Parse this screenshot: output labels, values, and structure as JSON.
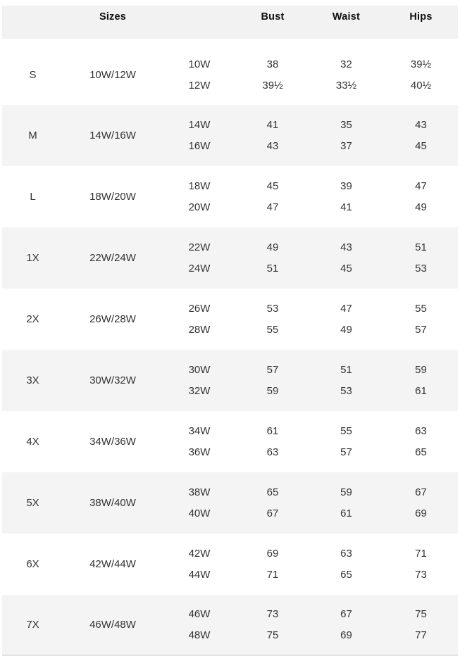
{
  "colors": {
    "header_band_bg": "#f2f2f2",
    "shaded_band_bg": "#f4f4f4",
    "header_text": "#111111",
    "body_text": "#333333",
    "bottom_border": "#e2e2e2"
  },
  "chart_data": {
    "type": "table",
    "headers": {
      "sizes": "Sizes",
      "bust": "Bust",
      "waist": "Waist",
      "hips": "Hips"
    },
    "groups": [
      {
        "label": "S",
        "range": "10W/12W",
        "subs": [
          {
            "size": "10W",
            "bust": "38",
            "waist": "32",
            "hips": "39½"
          },
          {
            "size": "12W",
            "bust": "39½",
            "waist": "33½",
            "hips": "40½"
          }
        ]
      },
      {
        "label": "M",
        "range": "14W/16W",
        "subs": [
          {
            "size": "14W",
            "bust": "41",
            "waist": "35",
            "hips": "43"
          },
          {
            "size": "16W",
            "bust": "43",
            "waist": "37",
            "hips": "45"
          }
        ]
      },
      {
        "label": "L",
        "range": "18W/20W",
        "subs": [
          {
            "size": "18W",
            "bust": "45",
            "waist": "39",
            "hips": "47"
          },
          {
            "size": "20W",
            "bust": "47",
            "waist": "41",
            "hips": "49"
          }
        ]
      },
      {
        "label": "1X",
        "range": "22W/24W",
        "subs": [
          {
            "size": "22W",
            "bust": "49",
            "waist": "43",
            "hips": "51"
          },
          {
            "size": "24W",
            "bust": "51",
            "waist": "45",
            "hips": "53"
          }
        ]
      },
      {
        "label": "2X",
        "range": "26W/28W",
        "subs": [
          {
            "size": "26W",
            "bust": "53",
            "waist": "47",
            "hips": "55"
          },
          {
            "size": "28W",
            "bust": "55",
            "waist": "49",
            "hips": "57"
          }
        ]
      },
      {
        "label": "3X",
        "range": "30W/32W",
        "subs": [
          {
            "size": "30W",
            "bust": "57",
            "waist": "51",
            "hips": "59"
          },
          {
            "size": "32W",
            "bust": "59",
            "waist": "53",
            "hips": "61"
          }
        ]
      },
      {
        "label": "4X",
        "range": "34W/36W",
        "subs": [
          {
            "size": "34W",
            "bust": "61",
            "waist": "55",
            "hips": "63"
          },
          {
            "size": "36W",
            "bust": "63",
            "waist": "57",
            "hips": "65"
          }
        ]
      },
      {
        "label": "5X",
        "range": "38W/40W",
        "subs": [
          {
            "size": "38W",
            "bust": "65",
            "waist": "59",
            "hips": "67"
          },
          {
            "size": "40W",
            "bust": "67",
            "waist": "61",
            "hips": "69"
          }
        ]
      },
      {
        "label": "6X",
        "range": "42W/44W",
        "subs": [
          {
            "size": "42W",
            "bust": "69",
            "waist": "63",
            "hips": "71"
          },
          {
            "size": "44W",
            "bust": "71",
            "waist": "65",
            "hips": "73"
          }
        ]
      },
      {
        "label": "7X",
        "range": "46W/48W",
        "subs": [
          {
            "size": "46W",
            "bust": "73",
            "waist": "67",
            "hips": "75"
          },
          {
            "size": "48W",
            "bust": "75",
            "waist": "69",
            "hips": "77"
          }
        ]
      }
    ]
  }
}
